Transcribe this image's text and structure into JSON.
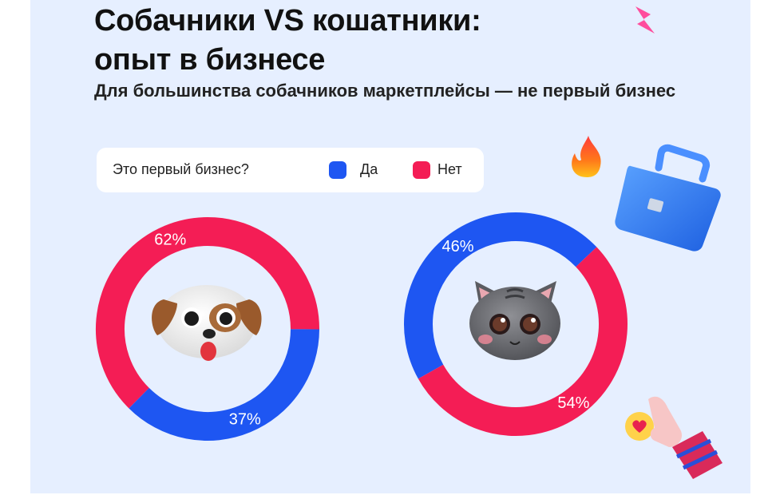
{
  "title_lines": [
    "Собачники VS кошатники:",
    "опыт в бизнесе"
  ],
  "subtitle": "Для большинства собачников маркетплейсы — не первый бизнес",
  "legend": {
    "question": "Это первый бизнес?",
    "items": [
      {
        "label": "Да",
        "color": "#1e56f2"
      },
      {
        "label": "Нет",
        "color": "#f41d55"
      }
    ]
  },
  "chart_data": [
    {
      "type": "pie",
      "name": "Собачники",
      "categories": [
        "Да",
        "Нет"
      ],
      "values": [
        37,
        62
      ],
      "labels": [
        "37%",
        "62%"
      ],
      "colors": [
        "#1e56f2",
        "#f41d55"
      ]
    },
    {
      "type": "pie",
      "name": "Кошатники",
      "categories": [
        "Да",
        "Нет"
      ],
      "values": [
        46,
        54
      ],
      "labels": [
        "46%",
        "54%"
      ],
      "colors": [
        "#1e56f2",
        "#f41d55"
      ]
    }
  ]
}
